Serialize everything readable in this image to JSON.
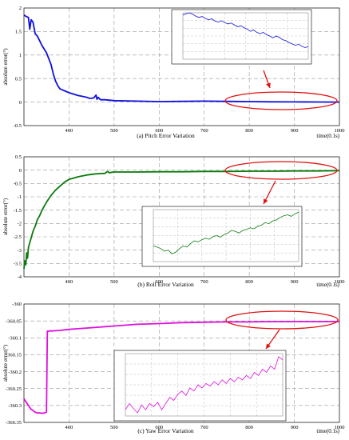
{
  "chart_data": [
    {
      "type": "line",
      "caption": "(a) Pitch Error Variation",
      "ylabel": "absolute error(°)",
      "xlabel": "time(0.1s)",
      "xlim": [
        300,
        1000
      ],
      "ylim": [
        -0.5,
        2
      ],
      "xticks": [
        "400",
        "500",
        "600",
        "700",
        "800",
        "900",
        "1000"
      ],
      "yticks": [
        "2",
        "1.5",
        "1",
        "0.5",
        "0",
        "-0.5"
      ],
      "color": "#1010e0",
      "series": [
        {
          "x": [
            300,
            305,
            310,
            313,
            316,
            320,
            325,
            330,
            340,
            350,
            360,
            365,
            370,
            375,
            380,
            385,
            390,
            400,
            410,
            420,
            430,
            440,
            445,
            450,
            455,
            460,
            462,
            465,
            470,
            480,
            500,
            550,
            600,
            650,
            700,
            750,
            800,
            850,
            900,
            950,
            1000
          ],
          "y": [
            1.85,
            1.82,
            1.8,
            1.55,
            1.75,
            1.7,
            1.45,
            1.4,
            1.2,
            1.05,
            0.8,
            0.6,
            0.45,
            0.35,
            0.28,
            0.26,
            0.24,
            0.2,
            0.17,
            0.14,
            0.12,
            0.1,
            0.08,
            0.08,
            0.09,
            0.15,
            0.06,
            0.1,
            0.05,
            0.05,
            0.03,
            0.02,
            0.01,
            0.015,
            0.02,
            0.015,
            0.01,
            0.005,
            0.003,
            0.001,
            0
          ]
        }
      ],
      "inset": {
        "y": [
          0.95,
          0.98,
          1.0,
          0.97,
          0.93,
          0.9,
          0.92,
          0.88,
          0.85,
          0.87,
          0.82,
          0.8,
          0.83,
          0.79,
          0.76,
          0.78,
          0.74,
          0.7,
          0.72,
          0.68,
          0.65,
          0.6,
          0.63,
          0.58,
          0.55,
          0.58,
          0.53,
          0.5,
          0.46,
          0.5,
          0.47,
          0.42,
          0.4,
          0.36,
          0.33,
          0.3,
          0.32,
          0.28,
          0.25,
          0.27
        ]
      }
    },
    {
      "type": "line",
      "caption": "(b) Roll Error Variation",
      "ylabel": "absolute error(°)",
      "xlabel": "time(0.1s)",
      "xlim": [
        300,
        1000
      ],
      "ylim": [
        -4,
        0.5
      ],
      "xticks": [
        "400",
        "500",
        "600",
        "700",
        "800",
        "900",
        "1000"
      ],
      "yticks": [
        "0.5",
        "0",
        "-0.5",
        "-1",
        "-1.5",
        "-2",
        "-2.5",
        "-3",
        "-3.5",
        "-4"
      ],
      "color": "#0a7a0a",
      "series": [
        {
          "x": [
            300,
            302,
            304,
            306,
            308,
            310,
            315,
            320,
            325,
            330,
            335,
            340,
            345,
            350,
            360,
            370,
            380,
            390,
            400,
            420,
            440,
            460,
            480,
            485,
            490,
            495,
            500,
            550,
            600,
            650,
            700,
            750,
            800,
            850,
            900,
            950,
            1000
          ],
          "y": [
            -3.7,
            -3.4,
            -3.55,
            -3.1,
            -3.3,
            -2.9,
            -2.6,
            -2.3,
            -2.1,
            -1.85,
            -1.7,
            -1.5,
            -1.35,
            -1.2,
            -0.95,
            -0.75,
            -0.6,
            -0.45,
            -0.35,
            -0.25,
            -0.18,
            -0.14,
            -0.12,
            -0.05,
            -0.1,
            -0.08,
            -0.07,
            -0.07,
            -0.06,
            -0.06,
            -0.05,
            -0.05,
            -0.04,
            -0.04,
            -0.03,
            -0.03,
            -0.02
          ]
        }
      ],
      "inset": {
        "y": [
          0.3,
          0.28,
          0.25,
          0.2,
          0.22,
          0.15,
          0.18,
          0.25,
          0.3,
          0.28,
          0.35,
          0.4,
          0.38,
          0.42,
          0.45,
          0.43,
          0.48,
          0.5,
          0.47,
          0.52,
          0.55,
          0.6,
          0.58,
          0.55,
          0.6,
          0.62,
          0.65,
          0.63,
          0.68,
          0.7,
          0.75,
          0.73,
          0.78,
          0.8,
          0.85,
          0.88,
          0.9,
          0.87,
          0.92,
          0.95
        ]
      }
    },
    {
      "type": "line",
      "caption": "(c) Yaw Error Variation",
      "ylabel": "absolute error(°)",
      "xlabel": "time(0.1s)",
      "xlim": [
        300,
        1000
      ],
      "ylim": [
        -360.35,
        -360
      ],
      "xticks": [
        "400",
        "500",
        "600",
        "700",
        "800",
        "900",
        "1000"
      ],
      "yticks": [
        "-360",
        "-360.05",
        "-360.1",
        "-360.15",
        "-360.2",
        "-360.25",
        "-360.3",
        "-360.35"
      ],
      "color": "#dd10dd",
      "series": [
        {
          "x": [
            300,
            305,
            310,
            315,
            320,
            325,
            330,
            335,
            340,
            345,
            350,
            352,
            354,
            356,
            358,
            360,
            370,
            380,
            400,
            420,
            450,
            500,
            550,
            600,
            650,
            700,
            750,
            800,
            850,
            900,
            950,
            1000
          ],
          "y": [
            -360.28,
            -360.29,
            -360.3,
            -360.31,
            -360.315,
            -360.32,
            -360.322,
            -360.322,
            -360.323,
            -360.322,
            -360.32,
            -360.08,
            -360.081,
            -360.08,
            -360.079,
            -360.08,
            -360.079,
            -360.078,
            -360.075,
            -360.073,
            -360.07,
            -360.065,
            -360.06,
            -360.058,
            -360.055,
            -360.054,
            -360.053,
            -360.053,
            -360.052,
            -360.052,
            -360.052,
            -360.052
          ]
        }
      ],
      "inset": {
        "y": [
          0.1,
          0.2,
          0.12,
          0.05,
          0.18,
          0.1,
          0.2,
          0.15,
          0.22,
          0.1,
          0.2,
          0.3,
          0.25,
          0.35,
          0.4,
          0.33,
          0.45,
          0.4,
          0.5,
          0.45,
          0.52,
          0.48,
          0.55,
          0.5,
          0.58,
          0.52,
          0.6,
          0.55,
          0.62,
          0.58,
          0.65,
          0.6,
          0.7,
          0.65,
          0.75,
          0.7,
          0.8,
          0.75,
          0.95,
          0.9
        ]
      }
    }
  ]
}
